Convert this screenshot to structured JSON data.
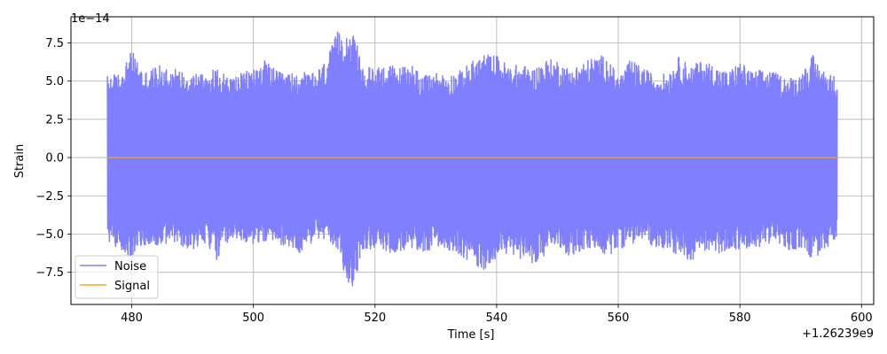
{
  "chart_data": {
    "type": "line",
    "title": "",
    "xlabel": "Time [s]",
    "ylabel": "Strain",
    "x_offset_text": "+1.26239e9",
    "y_scale_text": "1e−14",
    "xlim": [
      470,
      602
    ],
    "ylim": [
      -9.6,
      9.2
    ],
    "x_ticks": [
      480,
      500,
      520,
      540,
      560,
      580,
      600
    ],
    "x_tick_labels": [
      "480",
      "500",
      "520",
      "540",
      "560",
      "580",
      "600"
    ],
    "y_ticks": [
      7.5,
      5.0,
      2.5,
      0.0,
      -2.5,
      -5.0,
      -7.5
    ],
    "y_tick_labels": [
      "7.5",
      "5.0",
      "2.5",
      "0.0",
      "−2.5",
      "−5.0",
      "−7.5"
    ],
    "grid": true,
    "legend_position": "lower-left",
    "series": [
      {
        "name": "Noise",
        "color": "#7f7fff",
        "x_range": [
          476,
          596
        ],
        "band_top": [
          [
            476,
            5.4
          ],
          [
            478,
            5.5
          ],
          [
            480,
            7.0
          ],
          [
            482,
            5.6
          ],
          [
            484,
            6.0
          ],
          [
            486,
            6.0
          ],
          [
            488,
            5.7
          ],
          [
            490,
            5.6
          ],
          [
            492,
            5.6
          ],
          [
            494,
            5.8
          ],
          [
            496,
            5.3
          ],
          [
            498,
            5.5
          ],
          [
            500,
            5.9
          ],
          [
            502,
            6.4
          ],
          [
            504,
            5.6
          ],
          [
            506,
            5.5
          ],
          [
            508,
            5.6
          ],
          [
            510,
            5.5
          ],
          [
            512,
            6.4
          ],
          [
            514,
            8.4
          ],
          [
            516,
            8.2
          ],
          [
            517,
            7.6
          ],
          [
            518,
            5.8
          ],
          [
            520,
            6.0
          ],
          [
            522,
            6.1
          ],
          [
            524,
            5.9
          ],
          [
            526,
            6.2
          ],
          [
            528,
            5.3
          ],
          [
            530,
            5.6
          ],
          [
            532,
            5.4
          ],
          [
            534,
            5.7
          ],
          [
            536,
            6.3
          ],
          [
            538,
            6.8
          ],
          [
            540,
            6.7
          ],
          [
            542,
            6.0
          ],
          [
            544,
            6.1
          ],
          [
            546,
            5.8
          ],
          [
            548,
            6.4
          ],
          [
            550,
            6.4
          ],
          [
            552,
            5.8
          ],
          [
            554,
            6.2
          ],
          [
            556,
            6.6
          ],
          [
            558,
            6.7
          ],
          [
            560,
            5.3
          ],
          [
            562,
            6.4
          ],
          [
            564,
            5.9
          ],
          [
            566,
            5.4
          ],
          [
            568,
            5.5
          ],
          [
            570,
            6.6
          ],
          [
            572,
            6.0
          ],
          [
            574,
            6.4
          ],
          [
            576,
            6.0
          ],
          [
            578,
            5.6
          ],
          [
            580,
            6.3
          ],
          [
            582,
            5.6
          ],
          [
            584,
            5.8
          ],
          [
            586,
            5.5
          ],
          [
            588,
            5.2
          ],
          [
            590,
            5.5
          ],
          [
            592,
            6.7
          ],
          [
            594,
            5.6
          ],
          [
            596,
            5.3
          ]
        ],
        "band_bottom": [
          [
            476,
            -5.4
          ],
          [
            478,
            -6.1
          ],
          [
            480,
            -6.5
          ],
          [
            482,
            -5.7
          ],
          [
            484,
            -5.9
          ],
          [
            486,
            -5.6
          ],
          [
            488,
            -5.8
          ],
          [
            490,
            -6.0
          ],
          [
            492,
            -5.6
          ],
          [
            494,
            -6.7
          ],
          [
            496,
            -5.5
          ],
          [
            498,
            -5.5
          ],
          [
            500,
            -5.7
          ],
          [
            502,
            -5.5
          ],
          [
            504,
            -5.6
          ],
          [
            506,
            -5.9
          ],
          [
            508,
            -6.3
          ],
          [
            510,
            -5.4
          ],
          [
            512,
            -5.4
          ],
          [
            514,
            -6.3
          ],
          [
            516,
            -8.9
          ],
          [
            517,
            -7.6
          ],
          [
            518,
            -6.0
          ],
          [
            520,
            -6.0
          ],
          [
            522,
            -6.2
          ],
          [
            524,
            -6.2
          ],
          [
            526,
            -6.1
          ],
          [
            528,
            -6.2
          ],
          [
            530,
            -5.9
          ],
          [
            532,
            -6.0
          ],
          [
            534,
            -6.4
          ],
          [
            536,
            -7.0
          ],
          [
            538,
            -7.4
          ],
          [
            540,
            -6.5
          ],
          [
            542,
            -6.3
          ],
          [
            544,
            -6.6
          ],
          [
            546,
            -6.9
          ],
          [
            548,
            -6.5
          ],
          [
            550,
            -5.7
          ],
          [
            552,
            -6.5
          ],
          [
            554,
            -6.2
          ],
          [
            556,
            -5.9
          ],
          [
            558,
            -6.5
          ],
          [
            560,
            -6.0
          ],
          [
            562,
            -5.7
          ],
          [
            564,
            -5.4
          ],
          [
            566,
            -5.9
          ],
          [
            568,
            -5.9
          ],
          [
            570,
            -6.5
          ],
          [
            572,
            -6.8
          ],
          [
            574,
            -6.0
          ],
          [
            576,
            -6.5
          ],
          [
            578,
            -6.0
          ],
          [
            580,
            -6.0
          ],
          [
            582,
            -6.2
          ],
          [
            584,
            -5.6
          ],
          [
            586,
            -5.6
          ],
          [
            588,
            -6.2
          ],
          [
            590,
            -5.9
          ],
          [
            592,
            -6.7
          ],
          [
            594,
            -6.1
          ],
          [
            596,
            -5.3
          ]
        ]
      },
      {
        "name": "Signal",
        "color": "#f5a623",
        "x": [
          476,
          596
        ],
        "y": [
          0.0,
          0.0
        ]
      }
    ]
  }
}
